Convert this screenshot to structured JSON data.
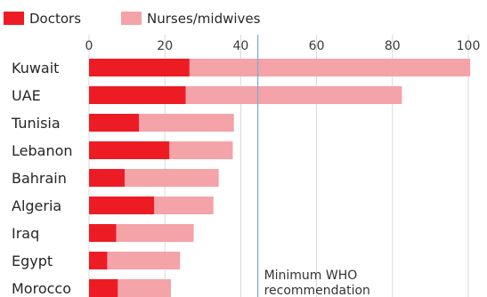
{
  "chart_data": {
    "type": "bar",
    "orientation": "horizontal",
    "stacked": true,
    "categories": [
      "Kuwait",
      "UAE",
      "Tunisia",
      "Lebanon",
      "Bahrain",
      "Algeria",
      "Iraq",
      "Egypt",
      "Morocco"
    ],
    "series": [
      {
        "name": "Doctors",
        "color": "#ed1c24",
        "values": [
          26.5,
          25.5,
          13.2,
          21.2,
          9.4,
          17.2,
          7.2,
          4.8,
          7.6
        ]
      },
      {
        "name": "Nurses/midwives",
        "color": "#f4a3a8",
        "values": [
          74.0,
          57.0,
          25.0,
          16.7,
          24.8,
          15.6,
          20.4,
          19.2,
          14.0
        ]
      }
    ],
    "xlim": [
      0,
      100
    ],
    "xticks": [
      0,
      20,
      40,
      60,
      80,
      100
    ],
    "axis_position": "top",
    "grid": true,
    "legend_position": "top-left",
    "reference_line": {
      "value": 44.5,
      "label_line1": "Minimum WHO",
      "label_line2": "recommendation",
      "color": "#7ab0cf"
    },
    "title": "",
    "xlabel": "",
    "ylabel": ""
  }
}
